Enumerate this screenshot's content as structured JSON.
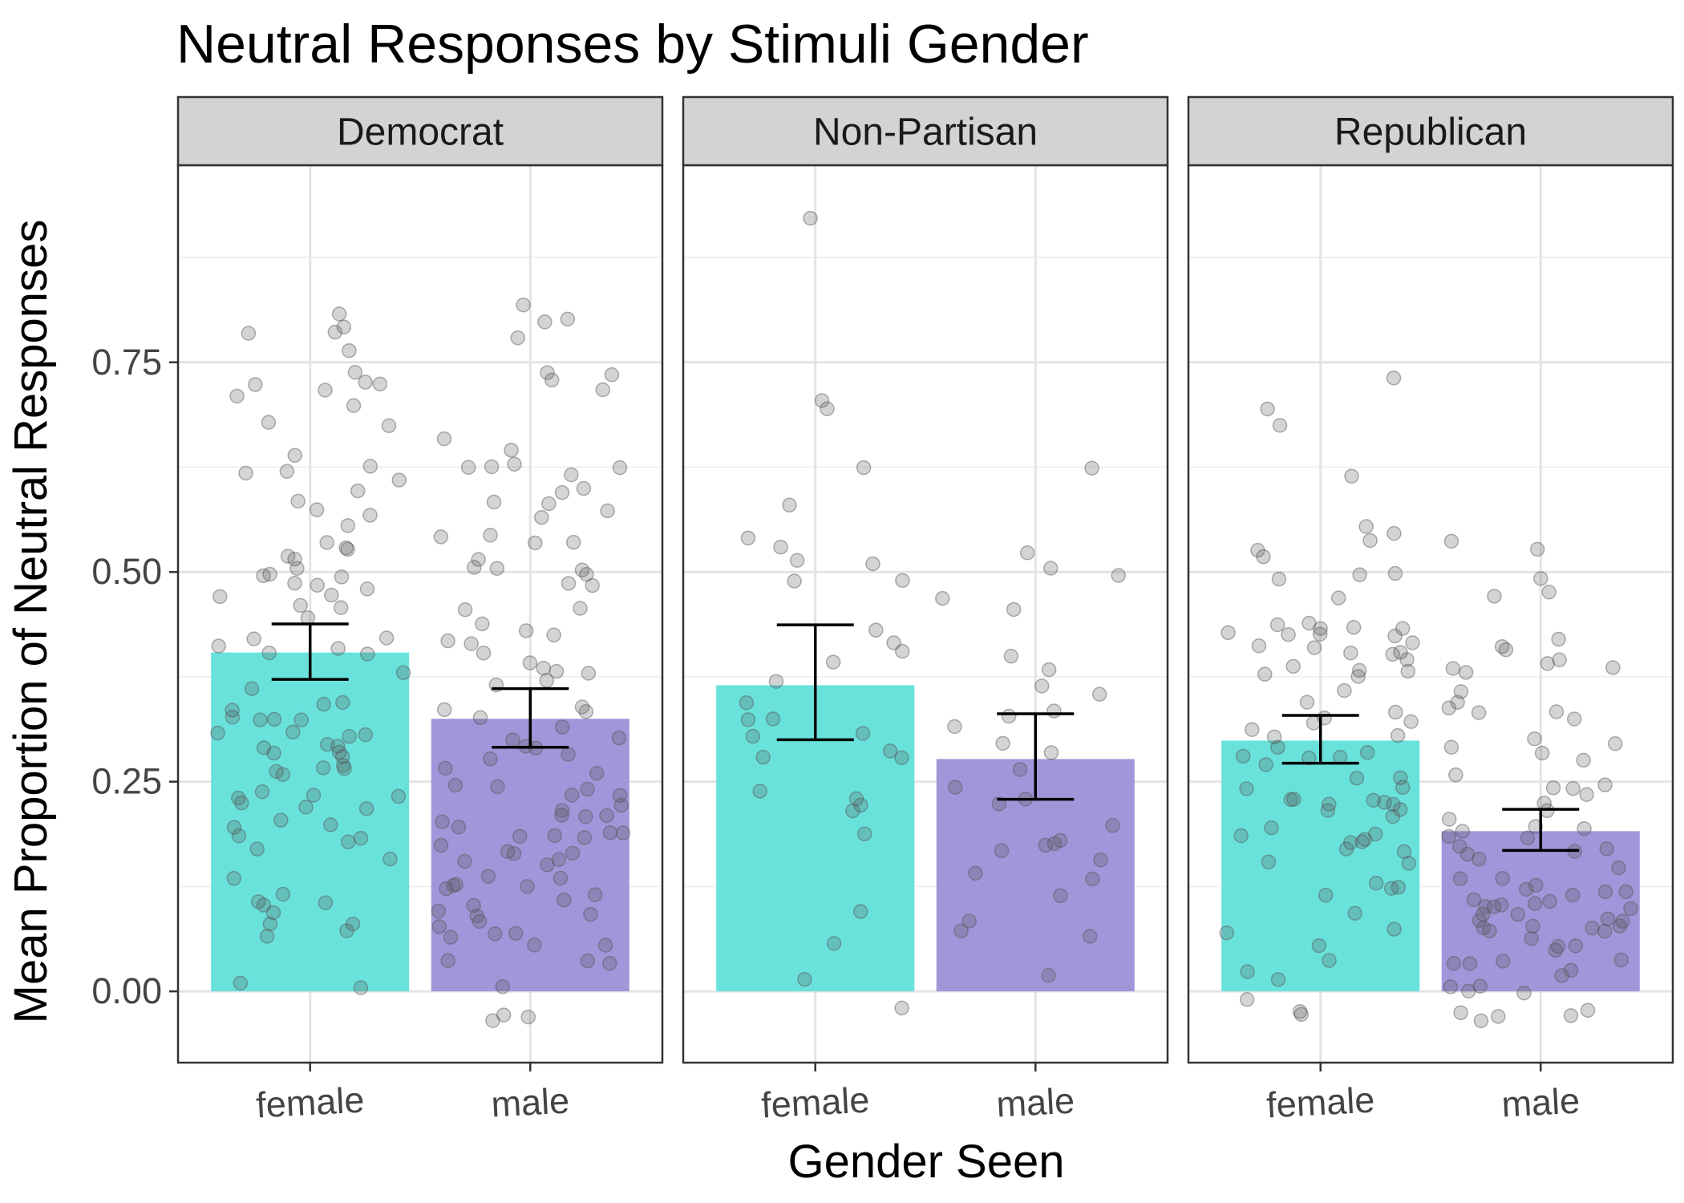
{
  "chart_data": {
    "type": "bar",
    "title": "Neutral Responses by Stimuli Gender",
    "xlabel": "Gender Seen",
    "ylabel": "Mean Proportion of Neutral Responses",
    "ylim": [
      -0.085,
      0.985
    ],
    "yticks": [
      0.0,
      0.25,
      0.5,
      0.75
    ],
    "ytick_labels": [
      "0.00",
      "0.25",
      "0.50",
      "0.75"
    ],
    "grid": true,
    "categories": [
      "female",
      "male"
    ],
    "colors": {
      "female": "#6ae2dc",
      "male": "#a196d9",
      "points": "#555555",
      "strip": "#d3d3d3"
    },
    "facets": [
      {
        "label": "Democrat",
        "bars": [
          {
            "category": "female",
            "value": 0.404,
            "ci": [
              0.372,
              0.438
            ]
          },
          {
            "category": "male",
            "value": 0.325,
            "ci": [
              0.291,
              0.361
            ]
          }
        ],
        "points": {
          "female": [
            0.81,
            0.78,
            0.79,
            0.78,
            0.76,
            0.74,
            0.73,
            0.72,
            0.72,
            0.72,
            0.71,
            0.7,
            0.68,
            0.67,
            0.64,
            0.63,
            0.62,
            0.62,
            0.61,
            0.6,
            0.58,
            0.57,
            0.57,
            0.56,
            0.54,
            0.53,
            0.53,
            0.52,
            0.51,
            0.51,
            0.5,
            0.5,
            0.5,
            0.49,
            0.48,
            0.48,
            0.47,
            0.47,
            0.46,
            0.46,
            0.44,
            0.42,
            0.42,
            0.41,
            0.41,
            0.4,
            0.4,
            0.38,
            0.36,
            0.34,
            0.34,
            0.33,
            0.33,
            0.32,
            0.32,
            0.32,
            0.31,
            0.31,
            0.3,
            0.3,
            0.29,
            0.29,
            0.29,
            0.29,
            0.28,
            0.28,
            0.27,
            0.27,
            0.27,
            0.26,
            0.26,
            0.24,
            0.23,
            0.23,
            0.23,
            0.22,
            0.22,
            0.22,
            0.21,
            0.2,
            0.2,
            0.19,
            0.18,
            0.18,
            0.17,
            0.16,
            0.13,
            0.11,
            0.11,
            0.1,
            0.1,
            0.09,
            0.08,
            0.08,
            0.07,
            0.07,
            0.01,
            0.01
          ],
          "male": [
            0.82,
            0.8,
            0.8,
            0.78,
            0.74,
            0.73,
            0.73,
            0.72,
            0.66,
            0.64,
            0.63,
            0.63,
            0.62,
            0.62,
            0.61,
            0.6,
            0.59,
            0.58,
            0.58,
            0.57,
            0.57,
            0.54,
            0.54,
            0.53,
            0.53,
            0.51,
            0.51,
            0.5,
            0.5,
            0.5,
            0.49,
            0.48,
            0.46,
            0.46,
            0.44,
            0.43,
            0.42,
            0.42,
            0.42,
            0.4,
            0.39,
            0.39,
            0.38,
            0.38,
            0.37,
            0.37,
            0.34,
            0.33,
            0.33,
            0.33,
            0.31,
            0.3,
            0.3,
            0.29,
            0.29,
            0.28,
            0.28,
            0.27,
            0.26,
            0.25,
            0.24,
            0.24,
            0.23,
            0.23,
            0.22,
            0.22,
            0.21,
            0.21,
            0.21,
            0.2,
            0.2,
            0.19,
            0.19,
            0.19,
            0.18,
            0.18,
            0.17,
            0.17,
            0.17,
            0.16,
            0.16,
            0.16,
            0.15,
            0.14,
            0.14,
            0.13,
            0.13,
            0.12,
            0.12,
            0.12,
            0.11,
            0.1,
            0.1,
            0.09,
            0.09,
            0.08,
            0.08,
            0.07,
            0.07,
            0.07,
            0.06,
            0.05,
            0.04,
            0.04,
            0.03,
            0.0,
            -0.03,
            -0.03,
            -0.03
          ]
        }
      },
      {
        "label": "Non-Partisan",
        "bars": [
          {
            "category": "female",
            "value": 0.365,
            "ci": [
              0.3,
              0.437
            ]
          },
          {
            "category": "male",
            "value": 0.277,
            "ci": [
              0.229,
              0.331
            ]
          }
        ],
        "points": {
          "female": [
            0.92,
            0.71,
            0.69,
            0.62,
            0.58,
            0.54,
            0.53,
            0.51,
            0.51,
            0.49,
            0.49,
            0.43,
            0.41,
            0.41,
            0.39,
            0.37,
            0.34,
            0.33,
            0.32,
            0.31,
            0.31,
            0.29,
            0.28,
            0.28,
            0.24,
            0.23,
            0.22,
            0.21,
            0.19,
            0.1,
            0.06,
            0.02,
            -0.02
          ],
          "male": [
            0.62,
            0.52,
            0.51,
            0.5,
            0.47,
            0.46,
            0.4,
            0.38,
            0.37,
            0.36,
            0.34,
            0.33,
            0.32,
            0.29,
            0.28,
            0.26,
            0.24,
            0.23,
            0.22,
            0.2,
            0.18,
            0.18,
            0.18,
            0.17,
            0.16,
            0.14,
            0.13,
            0.11,
            0.08,
            0.07,
            0.07,
            0.02
          ]
        }
      },
      {
        "label": "Republican",
        "bars": [
          {
            "category": "female",
            "value": 0.299,
            "ci": [
              0.272,
              0.329
            ]
          },
          {
            "category": "male",
            "value": 0.191,
            "ci": [
              0.168,
              0.217
            ]
          }
        ],
        "points": {
          "female": [
            0.73,
            0.69,
            0.67,
            0.61,
            0.56,
            0.54,
            0.54,
            0.53,
            0.52,
            0.5,
            0.5,
            0.49,
            0.47,
            0.44,
            0.44,
            0.43,
            0.43,
            0.43,
            0.43,
            0.43,
            0.42,
            0.42,
            0.41,
            0.41,
            0.41,
            0.41,
            0.4,
            0.4,
            0.4,
            0.39,
            0.38,
            0.38,
            0.38,
            0.37,
            0.36,
            0.34,
            0.33,
            0.33,
            0.32,
            0.32,
            0.31,
            0.3,
            0.3,
            0.29,
            0.29,
            0.28,
            0.28,
            0.28,
            0.27,
            0.26,
            0.25,
            0.24,
            0.24,
            0.23,
            0.23,
            0.23,
            0.23,
            0.22,
            0.22,
            0.22,
            0.21,
            0.21,
            0.2,
            0.19,
            0.19,
            0.18,
            0.18,
            0.18,
            0.17,
            0.17,
            0.16,
            0.15,
            0.13,
            0.12,
            0.12,
            0.11,
            0.09,
            0.08,
            0.07,
            0.06,
            0.04,
            0.02,
            0.01,
            -0.01,
            -0.02,
            -0.03
          ],
          "male": [
            0.54,
            0.53,
            0.49,
            0.48,
            0.47,
            0.42,
            0.41,
            0.41,
            0.39,
            0.39,
            0.39,
            0.38,
            0.38,
            0.36,
            0.34,
            0.34,
            0.33,
            0.33,
            0.33,
            0.3,
            0.3,
            0.29,
            0.28,
            0.28,
            0.26,
            0.25,
            0.24,
            0.24,
            0.23,
            0.23,
            0.22,
            0.21,
            0.2,
            0.2,
            0.19,
            0.19,
            0.18,
            0.17,
            0.17,
            0.17,
            0.16,
            0.16,
            0.15,
            0.14,
            0.13,
            0.13,
            0.12,
            0.12,
            0.12,
            0.11,
            0.11,
            0.11,
            0.11,
            0.1,
            0.1,
            0.1,
            0.1,
            0.09,
            0.09,
            0.09,
            0.09,
            0.08,
            0.08,
            0.08,
            0.08,
            0.07,
            0.07,
            0.07,
            0.06,
            0.06,
            0.05,
            0.05,
            0.04,
            0.04,
            0.03,
            0.03,
            0.02,
            0.02,
            0.01,
            0.01,
            0.0,
            0.0,
            -0.02,
            -0.03,
            -0.03,
            -0.03,
            -0.03
          ]
        }
      }
    ]
  }
}
